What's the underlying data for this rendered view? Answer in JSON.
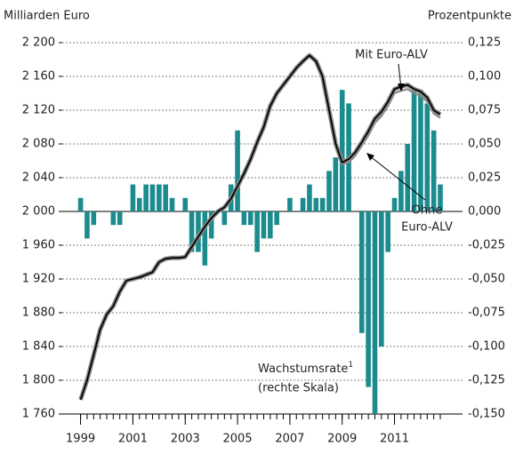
{
  "chart_data": {
    "type": "bar_line",
    "y_axis_label": "Milliarden Euro",
    "y2_axis_label": "Prozentpunkte",
    "x": [
      1999,
      1999.25,
      1999.5,
      1999.75,
      2000,
      2000.25,
      2000.5,
      2000.75,
      2001,
      2001.25,
      2001.5,
      2001.75,
      2002,
      2002.25,
      2002.5,
      2002.75,
      2003,
      2003.25,
      2003.5,
      2003.75,
      2004,
      2004.25,
      2004.5,
      2004.75,
      2005,
      2005.25,
      2005.5,
      2005.75,
      2006,
      2006.25,
      2006.5,
      2006.75,
      2007,
      2007.25,
      2007.5,
      2007.75,
      2008,
      2008.25,
      2008.5,
      2008.75,
      2009,
      2009.25,
      2009.5,
      2009.75,
      2010,
      2010.25,
      2010.5,
      2010.75,
      2011,
      2011.25,
      2011.5,
      2011.75,
      2012,
      2012.25,
      2012.5,
      2012.75
    ],
    "series": [
      {
        "type": "bar",
        "axis": "y2",
        "color": "#1b8b8d",
        "values": [
          0.01,
          -0.02,
          -0.01,
          0,
          0,
          -0.01,
          -0.01,
          0,
          0.02,
          0.01,
          0.02,
          0.02,
          0.02,
          0.02,
          0.01,
          0,
          0.01,
          -0.03,
          -0.03,
          -0.04,
          -0.02,
          0,
          -0.01,
          0.02,
          0.06,
          -0.01,
          -0.01,
          -0.03,
          -0.02,
          -0.02,
          -0.01,
          0,
          0.01,
          0,
          0.01,
          0.02,
          0.01,
          0.01,
          0.03,
          0.04,
          0.09,
          0.08,
          0,
          -0.09,
          -0.13,
          -0.15,
          -0.1,
          -0.03,
          0.01,
          0.03,
          0.05,
          0.09,
          0.09,
          0.08,
          0.06,
          0.02
        ]
      },
      {
        "type": "line",
        "color": "#000000",
        "values": [
          1777,
          1800,
          1830,
          1860,
          1878,
          1888,
          1905,
          1918,
          1920,
          1922,
          1925,
          1928,
          1940,
          1944,
          1945,
          1945,
          1946,
          1958,
          1970,
          1982,
          1992,
          2000,
          2005,
          2015,
          2030,
          2045,
          2062,
          2082,
          2100,
          2125,
          2140,
          2150,
          2160,
          2170,
          2178,
          2185,
          2178,
          2160,
          2120,
          2080,
          2058,
          2062,
          2070,
          2082,
          2095,
          2110,
          2118,
          2130,
          2145,
          2148,
          2150,
          2145,
          2142,
          2135,
          2120,
          2115
        ]
      },
      {
        "type": "line",
        "color": "#8a8a8a",
        "values": [
          1777,
          1800,
          1830,
          1860,
          1878,
          1888,
          1905,
          1918,
          1920,
          1922,
          1925,
          1928,
          1940,
          1944,
          1945,
          1945,
          1946,
          1958,
          1970,
          1982,
          1992,
          2000,
          2005,
          2015,
          2030,
          2045,
          2062,
          2082,
          2100,
          2125,
          2140,
          2150,
          2160,
          2170,
          2178,
          2185,
          2178,
          2160,
          2120,
          2080,
          2056,
          2058,
          2066,
          2078,
          2090,
          2105,
          2113,
          2125,
          2140,
          2143,
          2145,
          2140,
          2137,
          2130,
          2116,
          2111
        ]
      }
    ],
    "annotations": [
      {
        "lines": [
          "Mit Euro-ALV"
        ]
      },
      {
        "lines": [
          "Ohne",
          "Euro-ALV"
        ]
      },
      {
        "lines": [
          "Wachstumsrate",
          "(rechte Skala)"
        ],
        "footnote": "1"
      }
    ],
    "xlim": [
      1998.3,
      2013.6
    ],
    "xticks": [
      1999,
      2001,
      2003,
      2005,
      2007,
      2009,
      2011
    ],
    "ylim": [
      1760,
      2200
    ],
    "yticks": [
      {
        "value": 1760,
        "label": "1 760"
      },
      {
        "value": 1800,
        "label": "1 800"
      },
      {
        "value": 1840,
        "label": "1 840"
      },
      {
        "value": 1880,
        "label": "1 880"
      },
      {
        "value": 1920,
        "label": "1 920"
      },
      {
        "value": 1960,
        "label": "1 960"
      },
      {
        "value": 2000,
        "label": "2 000"
      },
      {
        "value": 2040,
        "label": "2 040"
      },
      {
        "value": 2080,
        "label": "2 080"
      },
      {
        "value": 2120,
        "label": "2 120"
      },
      {
        "value": 2160,
        "label": "2 160"
      },
      {
        "value": 2200,
        "label": "2 200"
      }
    ],
    "y2lim": [
      -0.15,
      0.125
    ],
    "y2ticks": [
      {
        "value": -0.15,
        "label": "-0,150"
      },
      {
        "value": -0.125,
        "label": "-0,125"
      },
      {
        "value": -0.1,
        "label": "-0,100"
      },
      {
        "value": -0.075,
        "label": "-0,075"
      },
      {
        "value": -0.05,
        "label": "-0,050"
      },
      {
        "value": -0.025,
        "label": "-0,025"
      },
      {
        "value": 0,
        "label": "0,000"
      },
      {
        "value": 0.025,
        "label": "0,025"
      },
      {
        "value": 0.05,
        "label": "0,050"
      },
      {
        "value": 0.075,
        "label": "0,075"
      },
      {
        "value": 0.1,
        "label": "0,100"
      },
      {
        "value": 0.125,
        "label": "0,125"
      }
    ],
    "grid": true
  }
}
